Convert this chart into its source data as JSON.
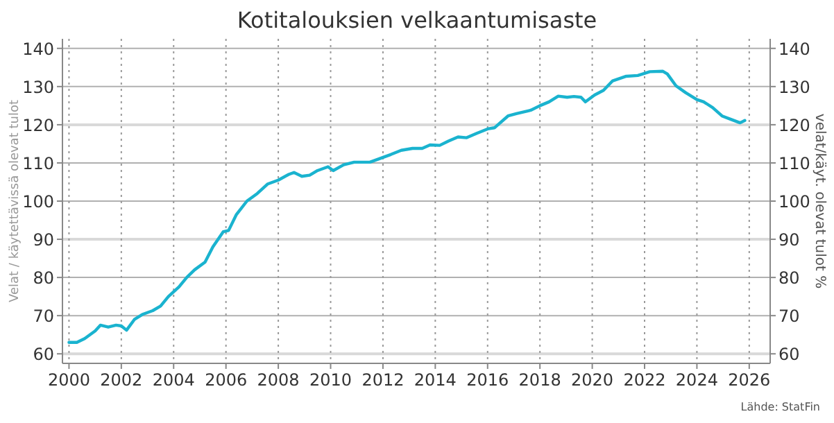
{
  "chart_data": {
    "type": "line",
    "title": "Kotitalouksien velkaantumisaste",
    "ylabel": "Velat / käytettävissä olevat tulot",
    "y2label": "velat/käyt. olevat tulot %",
    "annotations": [
      "Lähde: StatFin"
    ],
    "xlim": [
      1999.75,
      2026.8
    ],
    "xticks": [
      2000,
      2002,
      2004,
      2006,
      2008,
      2010,
      2012,
      2014,
      2016,
      2018,
      2020,
      2022,
      2024,
      2026
    ],
    "ylim": [
      57.5,
      142.5
    ],
    "yticks": [
      60,
      70,
      80,
      90,
      100,
      110,
      120,
      130,
      140
    ],
    "y2lim": [
      57.5,
      142.5
    ],
    "y2ticks": [
      60,
      70,
      80,
      90,
      100,
      110,
      120,
      130,
      140
    ],
    "grid": true,
    "line_style": "solid",
    "marker": "none",
    "series": [
      {
        "color": "#1ab3cf",
        "x": [
          2000,
          2000.3,
          2000.6,
          2001,
          2001.2,
          2001.5,
          2001.8,
          2002,
          2002.2,
          2002.5,
          2002.8,
          2003.2,
          2003.5,
          2003.8,
          2004.2,
          2004.5,
          2004.8,
          2005.2,
          2005.5,
          2005.9,
          2006.1,
          2006.4,
          2006.8,
          2007.2,
          2007.6,
          2008,
          2008.4,
          2008.6,
          2008.9,
          2009.2,
          2009.5,
          2009.9,
          2010.1,
          2010.5,
          2010.9,
          2011.5,
          2011.9,
          2012.3,
          2012.7,
          2013.13,
          2013.5,
          2013.8,
          2014.17,
          2014.5,
          2014.87,
          2015.2,
          2015.57,
          2016,
          2016.26,
          2016.78,
          2017.1,
          2017.65,
          2018,
          2018.35,
          2018.7,
          2019.04,
          2019.3,
          2019.57,
          2019.74,
          2020.09,
          2020.43,
          2020.78,
          2021.3,
          2021.74,
          2022.2,
          2022.7,
          2022.87,
          2023.2,
          2023.57,
          2024,
          2024.26,
          2024.6,
          2024.96,
          2025.3,
          2025.65,
          2025.83
        ],
        "values": [
          63,
          63,
          64,
          66,
          67.5,
          67,
          67.5,
          67.3,
          66.2,
          69,
          70.3,
          71.3,
          72.5,
          75,
          77.5,
          80,
          82,
          84,
          88,
          92,
          92.3,
          96.5,
          100,
          102,
          104.5,
          105.5,
          107,
          107.5,
          106.5,
          106.8,
          108,
          109,
          108,
          109.5,
          110.2,
          110.2,
          111.2,
          112.2,
          113.3,
          113.8,
          113.8,
          114.7,
          114.6,
          115.7,
          116.8,
          116.6,
          117.7,
          118.9,
          119.2,
          122.3,
          122.9,
          123.8,
          125,
          126,
          127.5,
          127.2,
          127.4,
          127.2,
          126,
          127.8,
          129,
          131.5,
          132.7,
          132.9,
          133.9,
          134,
          133.3,
          130.2,
          128.4,
          126.6,
          126,
          124.5,
          122.3,
          121.4,
          120.5,
          121.1
        ]
      }
    ]
  }
}
